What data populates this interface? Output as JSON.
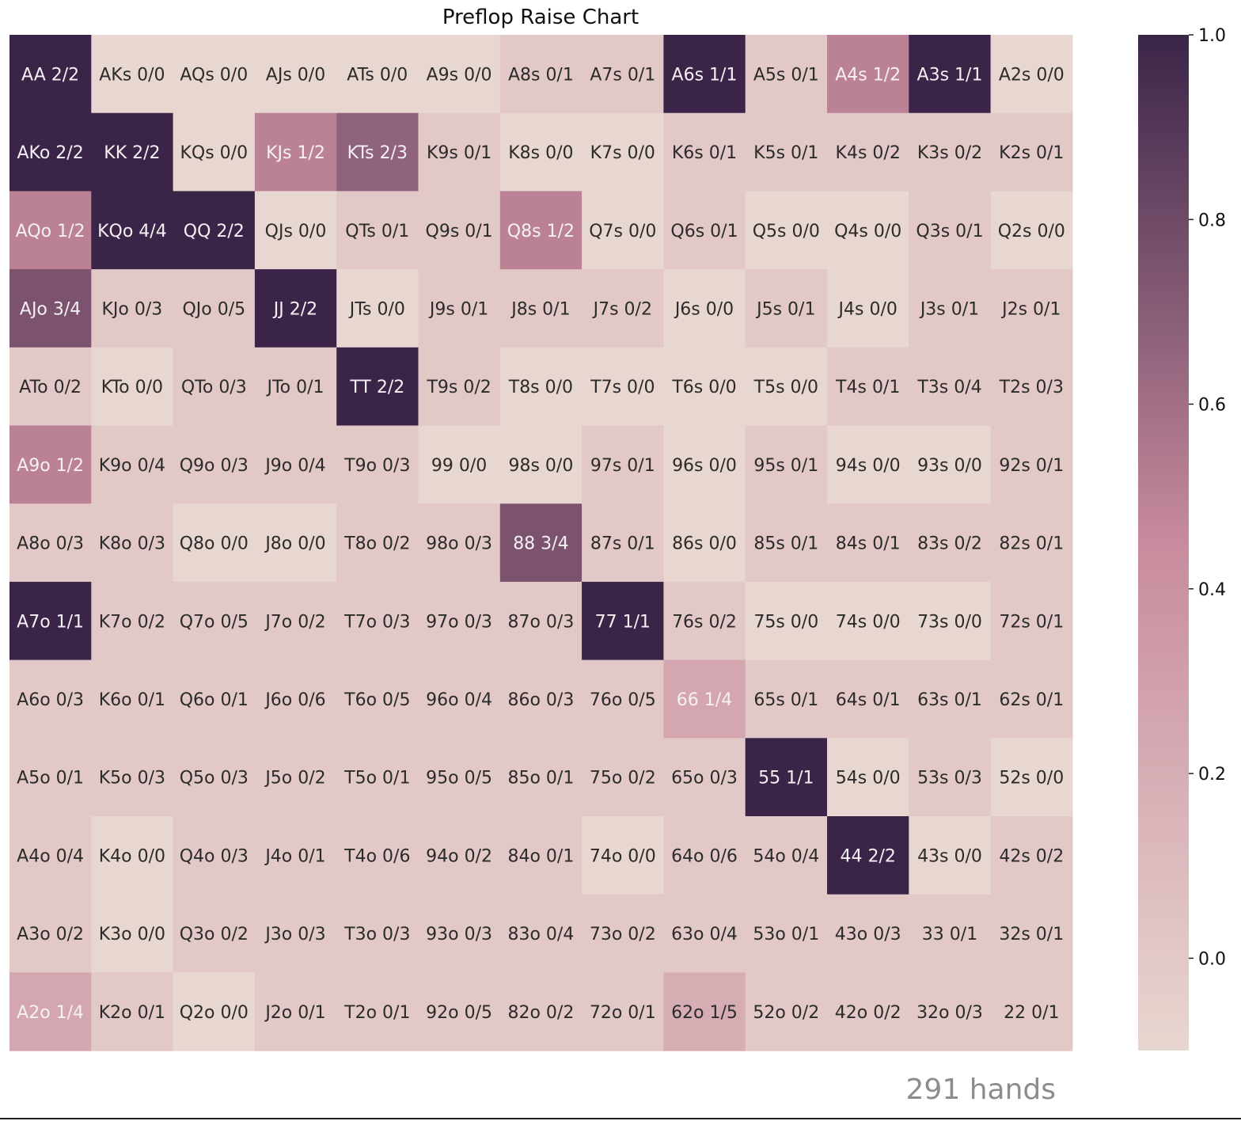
{
  "chart_data": {
    "type": "heatmap",
    "title": "Preflop Raise Chart",
    "rows": [
      [
        "AA 2/2",
        "AKs 0/0",
        "AQs 0/0",
        "AJs 0/0",
        "ATs 0/0",
        "A9s 0/0",
        "A8s 0/1",
        "A7s 0/1",
        "A6s 1/1",
        "A5s 0/1",
        "A4s 1/2",
        "A3s 1/1",
        "A2s 0/0"
      ],
      [
        "AKo 2/2",
        "KK 2/2",
        "KQs 0/0",
        "KJs 1/2",
        "KTs 2/3",
        "K9s 0/1",
        "K8s 0/0",
        "K7s 0/0",
        "K6s 0/1",
        "K5s 0/1",
        "K4s 0/2",
        "K3s 0/2",
        "K2s 0/1"
      ],
      [
        "AQo 1/2",
        "KQo 4/4",
        "QQ 2/2",
        "QJs 0/0",
        "QTs 0/1",
        "Q9s 0/1",
        "Q8s 1/2",
        "Q7s 0/0",
        "Q6s 0/1",
        "Q5s 0/0",
        "Q4s 0/0",
        "Q3s 0/1",
        "Q2s 0/0"
      ],
      [
        "AJo 3/4",
        "KJo 0/3",
        "QJo 0/5",
        "JJ 2/2",
        "JTs 0/0",
        "J9s 0/1",
        "J8s 0/1",
        "J7s 0/2",
        "J6s 0/0",
        "J5s 0/1",
        "J4s 0/0",
        "J3s 0/1",
        "J2s 0/1"
      ],
      [
        "ATo 0/2",
        "KTo 0/0",
        "QTo 0/3",
        "JTo 0/1",
        "TT 2/2",
        "T9s 0/2",
        "T8s 0/0",
        "T7s 0/0",
        "T6s 0/0",
        "T5s 0/0",
        "T4s 0/1",
        "T3s 0/4",
        "T2s 0/3"
      ],
      [
        "A9o 1/2",
        "K9o 0/4",
        "Q9o 0/3",
        "J9o 0/4",
        "T9o 0/3",
        "99 0/0",
        "98s 0/0",
        "97s 0/1",
        "96s 0/0",
        "95s 0/1",
        "94s 0/0",
        "93s 0/0",
        "92s 0/1"
      ],
      [
        "A8o 0/3",
        "K8o 0/3",
        "Q8o 0/0",
        "J8o 0/0",
        "T8o 0/2",
        "98o 0/3",
        "88 3/4",
        "87s 0/1",
        "86s 0/0",
        "85s 0/1",
        "84s 0/1",
        "83s 0/2",
        "82s 0/1"
      ],
      [
        "A7o 1/1",
        "K7o 0/2",
        "Q7o 0/5",
        "J7o 0/2",
        "T7o 0/3",
        "97o 0/3",
        "87o 0/3",
        "77 1/1",
        "76s 0/2",
        "75s 0/0",
        "74s 0/0",
        "73s 0/0",
        "72s 0/1"
      ],
      [
        "A6o 0/3",
        "K6o 0/1",
        "Q6o 0/1",
        "J6o 0/6",
        "T6o 0/5",
        "96o 0/4",
        "86o 0/3",
        "76o 0/5",
        "66 1/4",
        "65s 0/1",
        "64s 0/1",
        "63s 0/1",
        "62s 0/1"
      ],
      [
        "A5o 0/1",
        "K5o 0/3",
        "Q5o 0/3",
        "J5o 0/2",
        "T5o 0/1",
        "95o 0/5",
        "85o 0/1",
        "75o 0/2",
        "65o 0/3",
        "55 1/1",
        "54s 0/0",
        "53s 0/3",
        "52s 0/0"
      ],
      [
        "A4o 0/4",
        "K4o 0/0",
        "Q4o 0/3",
        "J4o 0/1",
        "T4o 0/6",
        "94o 0/2",
        "84o 0/1",
        "74o 0/0",
        "64o 0/6",
        "54o 0/4",
        "44 2/2",
        "43s 0/0",
        "42s 0/2"
      ],
      [
        "A3o 0/2",
        "K3o 0/0",
        "Q3o 0/2",
        "J3o 0/3",
        "T3o 0/3",
        "93o 0/3",
        "83o 0/4",
        "73o 0/2",
        "63o 0/4",
        "53o 0/1",
        "43o 0/3",
        "33 0/1",
        "32s 0/1"
      ],
      [
        "A2o 1/4",
        "K2o 0/1",
        "Q2o 0/0",
        "J2o 0/1",
        "T2o 0/1",
        "92o 0/5",
        "82o 0/2",
        "72o 0/1",
        "62o 1/5",
        "52o 0/2",
        "42o 0/2",
        "32o 0/3",
        "22 0/1"
      ]
    ],
    "empty_value": -0.1,
    "colorbar": {
      "min": -0.1,
      "max": 1.0,
      "ticks": [
        0.0,
        0.2,
        0.4,
        0.6,
        0.8,
        1.0
      ],
      "tick_labels": [
        "0.0",
        "0.2",
        "0.4",
        "0.6",
        "0.8",
        "1.0"
      ]
    },
    "colors": {
      "low": "#e8d6d0",
      "mid": "#c88b9d",
      "high": "#3a2548",
      "light_text": "#f5f0f3",
      "dark_text": "#2b2b2b"
    }
  },
  "footer": {
    "hands_label": "291 hands"
  }
}
